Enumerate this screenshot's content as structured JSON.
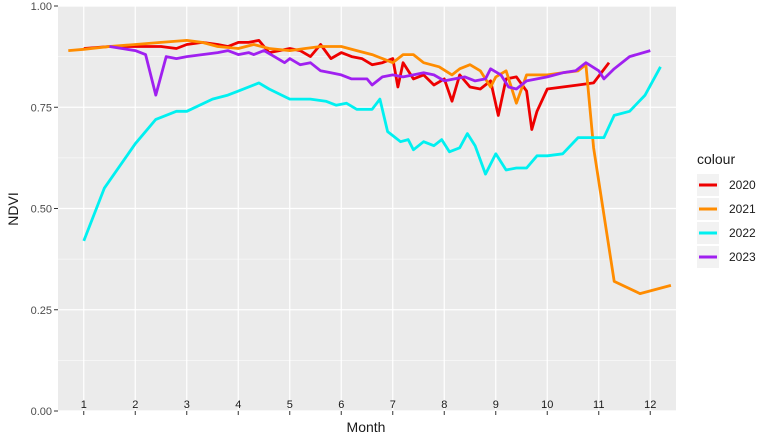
{
  "colors": {
    "panel_bg": "#EBEBEB",
    "grid_major": "#FFFFFF",
    "text_dark": "#1A1A1A",
    "text_axis": "#4D4D4D"
  },
  "chart_data": {
    "type": "line",
    "title": "",
    "xlabel": "Month",
    "ylabel": "NDVI",
    "xlim": [
      0.5,
      12.5
    ],
    "ylim": [
      0,
      1
    ],
    "y_ticks": [
      0,
      0.25,
      0.5,
      0.75,
      1.0
    ],
    "y_tick_labels": [
      "0.00",
      "0.25",
      "0.50",
      "0.75",
      "1.00"
    ],
    "month_labels": [
      "1",
      "2",
      "3",
      "4",
      "5",
      "6",
      "7",
      "8",
      "9",
      "10",
      "11",
      "12"
    ],
    "grid": true,
    "legend": {
      "title": "colour",
      "position": "right"
    },
    "series": [
      {
        "name": "2020",
        "color": "#EE0000",
        "x": [
          1.0,
          1.5,
          2.0,
          2.5,
          2.8,
          3.0,
          3.3,
          3.6,
          3.8,
          4.0,
          4.2,
          4.4,
          4.6,
          4.8,
          5.0,
          5.2,
          5.4,
          5.6,
          5.8,
          6.0,
          6.2,
          6.4,
          6.6,
          6.8,
          7.0,
          7.1,
          7.2,
          7.4,
          7.6,
          7.8,
          8.0,
          8.15,
          8.3,
          8.5,
          8.7,
          8.9,
          9.05,
          9.2,
          9.4,
          9.6,
          9.7,
          9.8,
          10.0,
          10.3,
          10.6,
          10.9,
          11.2
        ],
        "y": [
          0.895,
          0.9,
          0.9,
          0.9,
          0.895,
          0.905,
          0.91,
          0.905,
          0.9,
          0.91,
          0.91,
          0.915,
          0.885,
          0.89,
          0.895,
          0.89,
          0.875,
          0.905,
          0.87,
          0.885,
          0.875,
          0.87,
          0.855,
          0.86,
          0.87,
          0.8,
          0.86,
          0.82,
          0.83,
          0.805,
          0.82,
          0.765,
          0.83,
          0.8,
          0.795,
          0.815,
          0.73,
          0.82,
          0.825,
          0.79,
          0.695,
          0.74,
          0.795,
          0.8,
          0.805,
          0.81,
          0.86
        ]
      },
      {
        "name": "2021",
        "color": "#FF8C00",
        "x": [
          0.7,
          1.0,
          1.5,
          2.0,
          2.5,
          3.0,
          3.3,
          3.6,
          4.0,
          4.3,
          4.6,
          5.0,
          5.3,
          5.6,
          6.0,
          6.3,
          6.6,
          6.8,
          7.0,
          7.2,
          7.4,
          7.6,
          7.9,
          8.15,
          8.3,
          8.5,
          8.7,
          8.9,
          9.0,
          9.2,
          9.4,
          9.6,
          10.0,
          10.3,
          10.6,
          10.75,
          10.9,
          11.3,
          11.8,
          12.4
        ],
        "y": [
          0.89,
          0.893,
          0.9,
          0.905,
          0.91,
          0.915,
          0.91,
          0.9,
          0.895,
          0.905,
          0.895,
          0.89,
          0.895,
          0.9,
          0.9,
          0.89,
          0.88,
          0.87,
          0.86,
          0.88,
          0.88,
          0.86,
          0.85,
          0.83,
          0.845,
          0.855,
          0.84,
          0.8,
          0.825,
          0.84,
          0.76,
          0.83,
          0.83,
          0.835,
          0.84,
          0.855,
          0.65,
          0.32,
          0.29,
          0.31
        ]
      },
      {
        "name": "2022",
        "color": "#00F0F0",
        "x": [
          1.0,
          1.4,
          2.0,
          2.4,
          2.8,
          3.0,
          3.5,
          3.8,
          4.0,
          4.4,
          4.6,
          5.0,
          5.4,
          5.7,
          5.9,
          6.1,
          6.3,
          6.6,
          6.75,
          6.9,
          7.0,
          7.15,
          7.3,
          7.4,
          7.6,
          7.8,
          7.95,
          8.1,
          8.3,
          8.45,
          8.6,
          8.8,
          9.0,
          9.2,
          9.4,
          9.6,
          9.8,
          10.0,
          10.3,
          10.6,
          10.9,
          11.1,
          11.3,
          11.6,
          11.9,
          12.2
        ],
        "y": [
          0.42,
          0.55,
          0.66,
          0.72,
          0.74,
          0.74,
          0.77,
          0.78,
          0.79,
          0.81,
          0.795,
          0.77,
          0.77,
          0.765,
          0.755,
          0.76,
          0.745,
          0.745,
          0.77,
          0.69,
          0.68,
          0.665,
          0.67,
          0.645,
          0.665,
          0.655,
          0.67,
          0.64,
          0.65,
          0.685,
          0.655,
          0.585,
          0.635,
          0.595,
          0.6,
          0.6,
          0.63,
          0.63,
          0.635,
          0.675,
          0.675,
          0.675,
          0.73,
          0.74,
          0.78,
          0.85
        ]
      },
      {
        "name": "2023",
        "color": "#A020F0",
        "x": [
          1.5,
          2.0,
          2.2,
          2.4,
          2.6,
          2.8,
          3.0,
          3.3,
          3.6,
          3.8,
          4.0,
          4.2,
          4.3,
          4.5,
          4.7,
          4.9,
          5.0,
          5.2,
          5.4,
          5.6,
          5.8,
          6.0,
          6.2,
          6.5,
          6.6,
          6.8,
          7.0,
          7.2,
          7.4,
          7.6,
          7.8,
          8.0,
          8.2,
          8.4,
          8.6,
          8.8,
          8.9,
          9.1,
          9.25,
          9.4,
          9.6,
          10.0,
          10.3,
          10.55,
          10.75,
          11.0,
          11.1,
          11.3,
          11.6,
          12.0
        ],
        "y": [
          0.9,
          0.89,
          0.88,
          0.78,
          0.875,
          0.87,
          0.875,
          0.88,
          0.885,
          0.89,
          0.88,
          0.885,
          0.88,
          0.89,
          0.875,
          0.86,
          0.87,
          0.855,
          0.86,
          0.84,
          0.835,
          0.83,
          0.82,
          0.82,
          0.805,
          0.825,
          0.83,
          0.825,
          0.83,
          0.835,
          0.83,
          0.815,
          0.82,
          0.825,
          0.815,
          0.82,
          0.845,
          0.83,
          0.8,
          0.795,
          0.815,
          0.825,
          0.835,
          0.84,
          0.86,
          0.84,
          0.82,
          0.845,
          0.875,
          0.89
        ]
      }
    ]
  }
}
